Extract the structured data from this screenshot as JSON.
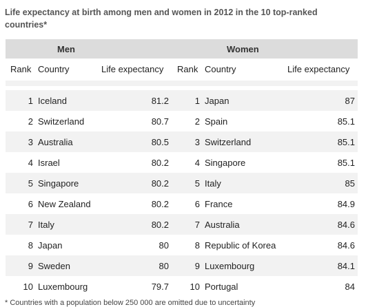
{
  "caption": "Life expectancy at birth among men and women in 2012 in the 10 top-ranked countries*",
  "groups": {
    "men": "Men",
    "women": "Women"
  },
  "columns": {
    "rank": "Rank",
    "country": "Country",
    "life": "Life expectancy"
  },
  "men": [
    {
      "rank": "1",
      "country": "Iceland",
      "life": "81.2"
    },
    {
      "rank": "2",
      "country": "Switzerland",
      "life": "80.7"
    },
    {
      "rank": "3",
      "country": "Australia",
      "life": "80.5"
    },
    {
      "rank": "4",
      "country": "Israel",
      "life": "80.2"
    },
    {
      "rank": "5",
      "country": "Singapore",
      "life": "80.2"
    },
    {
      "rank": "6",
      "country": "New Zealand",
      "life": "80.2"
    },
    {
      "rank": "7",
      "country": "Italy",
      "life": "80.2"
    },
    {
      "rank": "8",
      "country": "Japan",
      "life": "80"
    },
    {
      "rank": "9",
      "country": "Sweden",
      "life": "80"
    },
    {
      "rank": "10",
      "country": "Luxembourg",
      "life": "79.7"
    }
  ],
  "women": [
    {
      "rank": "1",
      "country": "Japan",
      "life": "87"
    },
    {
      "rank": "2",
      "country": "Spain",
      "life": "85.1"
    },
    {
      "rank": "3",
      "country": "Switzerland",
      "life": "85.1"
    },
    {
      "rank": "4",
      "country": "Singapore",
      "life": "85.1"
    },
    {
      "rank": "5",
      "country": "Italy",
      "life": "85"
    },
    {
      "rank": "6",
      "country": "France",
      "life": "84.9"
    },
    {
      "rank": "7",
      "country": "Australia",
      "life": "84.6"
    },
    {
      "rank": "8",
      "country": "Republic of Korea",
      "life": "84.6"
    },
    {
      "rank": "9",
      "country": "Luxembourg",
      "life": "84.1"
    },
    {
      "rank": "10",
      "country": "Portugal",
      "life": "84"
    }
  ],
  "footnote": "* Countries with a population below 250 000 are omitted due to uncertainty"
}
